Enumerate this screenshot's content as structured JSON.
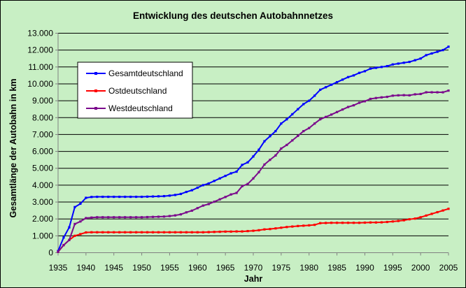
{
  "chart_data": {
    "type": "line",
    "title": "Entwicklung des deutschen Autobahnnetzes",
    "xlabel": "Jahr",
    "ylabel": "Gesamtlänge der Autobahn in km",
    "xlim": [
      1935,
      2005
    ],
    "ylim": [
      0,
      13000
    ],
    "x_ticks": [
      1935,
      1940,
      1945,
      1950,
      1955,
      1960,
      1965,
      1970,
      1975,
      1980,
      1985,
      1990,
      1995,
      2000,
      2005
    ],
    "y_ticks": [
      0,
      1000,
      2000,
      3000,
      4000,
      5000,
      6000,
      7000,
      8000,
      9000,
      10000,
      11000,
      12000,
      13000
    ],
    "y_tick_labels": [
      "0",
      "1.000",
      "2.000",
      "3.000",
      "4.000",
      "5.000",
      "6.000",
      "7.000",
      "8.000",
      "9.000",
      "10.000",
      "11.000",
      "12.000",
      "13.000"
    ],
    "grid": "horizontal",
    "legend_position": "top-left",
    "x": [
      1935,
      1936,
      1937,
      1938,
      1939,
      1940,
      1941,
      1942,
      1943,
      1944,
      1945,
      1946,
      1947,
      1948,
      1949,
      1950,
      1951,
      1952,
      1953,
      1954,
      1955,
      1956,
      1957,
      1958,
      1959,
      1960,
      1961,
      1962,
      1963,
      1964,
      1965,
      1966,
      1967,
      1968,
      1969,
      1970,
      1971,
      1972,
      1973,
      1974,
      1975,
      1976,
      1977,
      1978,
      1979,
      1980,
      1981,
      1982,
      1983,
      1984,
      1985,
      1986,
      1987,
      1988,
      1989,
      1990,
      1991,
      1992,
      1993,
      1994,
      1995,
      1996,
      1997,
      1998,
      1999,
      2000,
      2001,
      2002,
      2003,
      2004,
      2005
    ],
    "series": [
      {
        "name": "Gesamtdeutschland",
        "color": "#0000ff",
        "values": [
          100,
          900,
          1500,
          2700,
          2900,
          3250,
          3300,
          3310,
          3310,
          3310,
          3310,
          3310,
          3310,
          3310,
          3310,
          3310,
          3320,
          3330,
          3340,
          3350,
          3380,
          3420,
          3480,
          3600,
          3700,
          3850,
          4000,
          4100,
          4250,
          4400,
          4550,
          4700,
          4800,
          5200,
          5350,
          5700,
          6100,
          6600,
          6900,
          7200,
          7650,
          7900,
          8200,
          8500,
          8800,
          9000,
          9300,
          9650,
          9800,
          9950,
          10100,
          10250,
          10400,
          10500,
          10650,
          10750,
          10900,
          10950,
          11000,
          11050,
          11150,
          11200,
          11250,
          11300,
          11400,
          11500,
          11700,
          11800,
          11900,
          12000,
          12200
        ]
      },
      {
        "name": "Ostdeutschland",
        "color": "#ff0000",
        "values": [
          50,
          450,
          750,
          1000,
          1100,
          1200,
          1210,
          1210,
          1210,
          1210,
          1210,
          1210,
          1210,
          1210,
          1210,
          1210,
          1210,
          1210,
          1210,
          1210,
          1210,
          1210,
          1210,
          1210,
          1210,
          1210,
          1210,
          1220,
          1230,
          1240,
          1250,
          1250,
          1260,
          1260,
          1280,
          1300,
          1330,
          1380,
          1400,
          1440,
          1480,
          1520,
          1550,
          1580,
          1600,
          1620,
          1650,
          1750,
          1760,
          1770,
          1770,
          1770,
          1770,
          1770,
          1770,
          1780,
          1790,
          1790,
          1800,
          1820,
          1850,
          1880,
          1920,
          1980,
          2020,
          2100,
          2200,
          2300,
          2400,
          2500,
          2600
        ]
      },
      {
        "name": "Westdeutschland",
        "color": "#7b0a8c",
        "values": [
          50,
          450,
          750,
          1700,
          1850,
          2050,
          2080,
          2100,
          2100,
          2100,
          2100,
          2100,
          2100,
          2100,
          2100,
          2100,
          2110,
          2120,
          2130,
          2140,
          2170,
          2210,
          2270,
          2390,
          2490,
          2640,
          2790,
          2880,
          3020,
          3160,
          3300,
          3450,
          3540,
          3940,
          4070,
          4400,
          4770,
          5220,
          5500,
          5760,
          6170,
          6380,
          6650,
          6920,
          7200,
          7380,
          7650,
          7900,
          8040,
          8180,
          8330,
          8480,
          8630,
          8730,
          8880,
          8970,
          9110,
          9160,
          9200,
          9230,
          9300,
          9320,
          9330,
          9320,
          9380,
          9400,
          9500,
          9500,
          9500,
          9500,
          9600
        ]
      }
    ]
  }
}
